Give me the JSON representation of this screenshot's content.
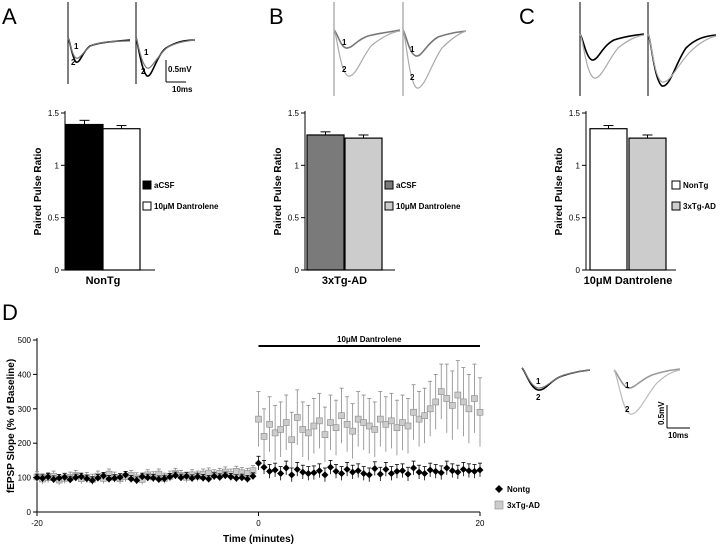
{
  "panels": {
    "A": {
      "letter": "A",
      "category": "NonTg"
    },
    "B": {
      "letter": "B",
      "category": "3xTg-AD"
    },
    "C": {
      "letter": "C",
      "category": "10μM Dantrolene"
    },
    "D": {
      "letter": "D"
    }
  },
  "traces": {
    "labels": [
      "1",
      "2"
    ],
    "scale_voltage": "0.5mV",
    "scale_time": "10ms"
  },
  "colors": {
    "black": "#000000",
    "dark_gray": "#7a7a7a",
    "light_gray": "#cccccc",
    "white": "#ffffff",
    "trace_gray": "#9a9a9a"
  },
  "chart_data": [
    {
      "type": "bar",
      "panel": "A",
      "categories": [
        "aCSF",
        "10μM Dantrolene"
      ],
      "values": [
        1.39,
        1.35
      ],
      "errors": [
        0.04,
        0.03
      ],
      "bar_colors": [
        "#000000",
        "#ffffff"
      ],
      "xlabel": "NonTg",
      "ylabel": "Paired Pulse Ratio",
      "yticks": [
        "0",
        "0.5",
        "1",
        "1.5"
      ],
      "ylim": [
        0,
        1.5
      ],
      "legend": [
        "aCSF",
        "10μM Dantrolene"
      ]
    },
    {
      "type": "bar",
      "panel": "B",
      "categories": [
        "aCSF",
        "10μM Dantrolene"
      ],
      "values": [
        1.29,
        1.26
      ],
      "errors": [
        0.03,
        0.03
      ],
      "bar_colors": [
        "#7a7a7a",
        "#cccccc"
      ],
      "xlabel": "3xTg-AD",
      "ylabel": "Paired Pulse Ratio",
      "yticks": [
        "0",
        "0.5",
        "1",
        "1.5"
      ],
      "ylim": [
        0,
        1.5
      ],
      "legend": [
        "aCSF",
        "10μM Dantrolene"
      ]
    },
    {
      "type": "bar",
      "panel": "C",
      "categories": [
        "NonTg",
        "3xTg-AD"
      ],
      "values": [
        1.35,
        1.26
      ],
      "errors": [
        0.03,
        0.03
      ],
      "bar_colors": [
        "#ffffff",
        "#cccccc"
      ],
      "xlabel": "10μM Dantrolene",
      "ylabel": "Paired Pulse Ratio",
      "yticks": [
        "0",
        "0.5",
        "1",
        "1.5"
      ],
      "ylim": [
        0,
        1.5
      ],
      "legend": [
        "NonTg",
        "3xTg-AD"
      ]
    },
    {
      "type": "scatter",
      "panel": "D",
      "xlabel": "Time (minutes)",
      "ylabel": "fEPSP Slope (% of Baseline)",
      "xlim": [
        -20,
        20
      ],
      "ylim": [
        0,
        500
      ],
      "xticks": [
        "-20",
        "0",
        "20"
      ],
      "yticks": [
        "0",
        "100",
        "200",
        "300",
        "400",
        "500"
      ],
      "annotation": "10μM Dantrolene",
      "annotation_range": [
        0,
        20
      ],
      "series": [
        {
          "name": "Nontg",
          "marker": "diamond",
          "color": "#000000",
          "x": [
            -20,
            -19.5,
            -19,
            -18.5,
            -18,
            -17.5,
            -17,
            -16.5,
            -16,
            -15.5,
            -15,
            -14.5,
            -14,
            -13.5,
            -13,
            -12.5,
            -12,
            -11.5,
            -11,
            -10.5,
            -10,
            -9.5,
            -9,
            -8.5,
            -8,
            -7.5,
            -7,
            -6.5,
            -6,
            -5.5,
            -5,
            -4.5,
            -4,
            -3.5,
            -3,
            -2.5,
            -2,
            -1.5,
            -1,
            -0.5,
            0,
            0.5,
            1,
            1.5,
            2,
            2.5,
            3,
            3.5,
            4,
            4.5,
            5,
            5.5,
            6,
            6.5,
            7,
            7.5,
            8,
            8.5,
            9,
            9.5,
            10,
            10.5,
            11,
            11.5,
            12,
            12.5,
            13,
            13.5,
            14,
            14.5,
            15,
            15.5,
            16,
            16.5,
            17,
            17.5,
            18,
            18.5,
            19,
            19.5,
            20
          ],
          "y": [
            100,
            98,
            102,
            95,
            99,
            101,
            94,
            100,
            103,
            97,
            92,
            99,
            105,
            96,
            98,
            101,
            108,
            96,
            92,
            103,
            100,
            99,
            95,
            97,
            102,
            106,
            100,
            104,
            98,
            103,
            99,
            96,
            104,
            101,
            106,
            102,
            98,
            100,
            96,
            104,
            142,
            130,
            118,
            122,
            112,
            128,
            108,
            124,
            116,
            112,
            114,
            120,
            108,
            130,
            118,
            112,
            124,
            116,
            120,
            112,
            108,
            126,
            110,
            124,
            112,
            118,
            120,
            110,
            128,
            116,
            112,
            122,
            118,
            114,
            128,
            120,
            116,
            124,
            120,
            118,
            122
          ],
          "err": [
            10,
            10,
            10,
            10,
            10,
            10,
            10,
            10,
            10,
            10,
            10,
            10,
            10,
            10,
            10,
            10,
            10,
            10,
            10,
            10,
            10,
            10,
            10,
            10,
            10,
            10,
            10,
            10,
            10,
            10,
            10,
            10,
            10,
            10,
            10,
            10,
            10,
            10,
            10,
            10,
            20,
            20,
            20,
            20,
            20,
            20,
            20,
            20,
            20,
            20,
            20,
            20,
            20,
            20,
            20,
            20,
            20,
            20,
            20,
            20,
            20,
            20,
            20,
            20,
            20,
            20,
            20,
            20,
            20,
            20,
            20,
            20,
            20,
            20,
            20,
            20,
            20,
            20,
            20,
            20,
            20
          ]
        },
        {
          "name": "3xTg-AD",
          "marker": "square",
          "color": "#cccccc",
          "x": [
            -20,
            -19.5,
            -19,
            -18.5,
            -18,
            -17.5,
            -17,
            -16.5,
            -16,
            -15.5,
            -15,
            -14.5,
            -14,
            -13.5,
            -13,
            -12.5,
            -12,
            -11.5,
            -11,
            -10.5,
            -10,
            -9.5,
            -9,
            -8.5,
            -8,
            -7.5,
            -7,
            -6.5,
            -6,
            -5.5,
            -5,
            -4.5,
            -4,
            -3.5,
            -3,
            -2.5,
            -2,
            -1.5,
            -1,
            -0.5,
            0,
            0.5,
            1,
            1.5,
            2,
            2.5,
            3,
            3.5,
            4,
            4.5,
            5,
            5.5,
            6,
            6.5,
            7,
            7.5,
            8,
            8.5,
            9,
            9.5,
            10,
            10.5,
            11,
            11.5,
            12,
            12.5,
            13,
            13.5,
            14,
            14.5,
            15,
            15.5,
            16,
            16.5,
            17,
            17.5,
            18,
            18.5,
            19,
            19.5,
            20
          ],
          "y": [
            102,
            96,
            100,
            104,
            93,
            98,
            101,
            106,
            97,
            100,
            95,
            104,
            98,
            110,
            101,
            97,
            103,
            106,
            99,
            95,
            108,
            102,
            110,
            98,
            104,
            112,
            106,
            101,
            108,
            104,
            110,
            113,
            108,
            112,
            116,
            110,
            118,
            114,
            112,
            120,
            270,
            220,
            255,
            230,
            240,
            260,
            210,
            275,
            240,
            230,
            250,
            265,
            225,
            260,
            245,
            280,
            255,
            235,
            270,
            260,
            250,
            240,
            270,
            255,
            265,
            245,
            260,
            250,
            290,
            270,
            280,
            300,
            320,
            350,
            330,
            310,
            340,
            320,
            300,
            330,
            290
          ],
          "err": [
            15,
            15,
            15,
            15,
            15,
            15,
            15,
            15,
            15,
            15,
            15,
            15,
            15,
            15,
            15,
            15,
            15,
            15,
            15,
            15,
            15,
            15,
            15,
            15,
            15,
            15,
            15,
            15,
            15,
            15,
            15,
            15,
            15,
            15,
            15,
            15,
            15,
            15,
            15,
            15,
            80,
            80,
            80,
            80,
            80,
            80,
            80,
            80,
            80,
            80,
            80,
            80,
            80,
            80,
            80,
            80,
            80,
            80,
            80,
            80,
            80,
            80,
            80,
            80,
            80,
            80,
            80,
            80,
            80,
            80,
            80,
            80,
            80,
            80,
            100,
            100,
            100,
            100,
            100,
            100,
            100
          ]
        }
      ],
      "legend": [
        "Nontg",
        "3xTg-AD"
      ]
    }
  ]
}
